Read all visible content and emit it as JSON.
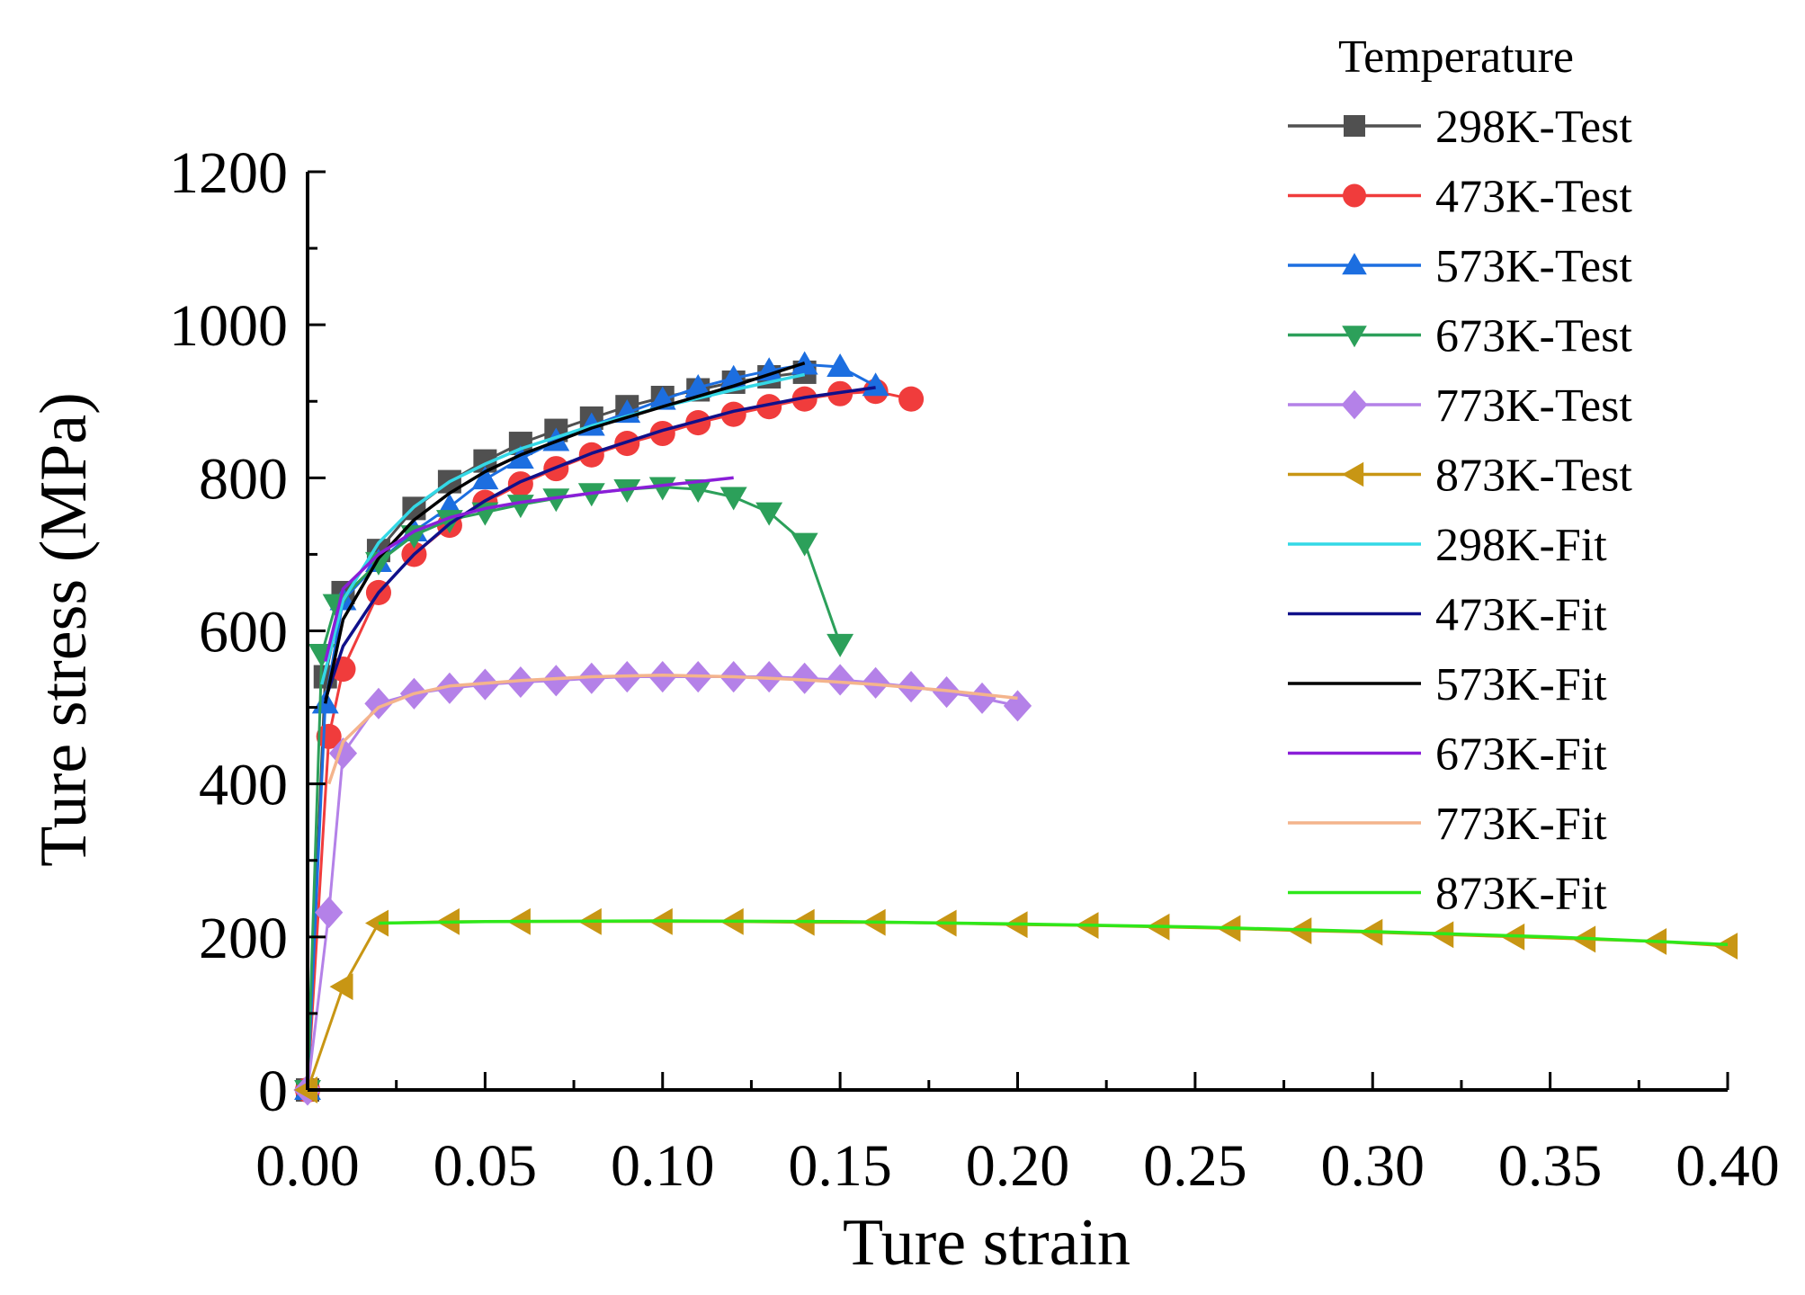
{
  "chart_data": {
    "type": "line",
    "title": "",
    "xlabel": "Ture strain",
    "ylabel": "Ture stress (MPa)",
    "xlim": [
      0,
      0.4
    ],
    "ylim": [
      0,
      1200
    ],
    "xticks": [
      "0.00",
      "0.05",
      "0.10",
      "0.15",
      "0.20",
      "0.25",
      "0.30",
      "0.35",
      "0.40"
    ],
    "yticks": [
      "0",
      "200",
      "400",
      "600",
      "800",
      "1000",
      "1200"
    ],
    "legend_title": "Temperature",
    "legend_position": "top-right",
    "grid": false,
    "series": [
      {
        "name": "298K-Test",
        "color": "#505050",
        "marker": "square",
        "kind": "test",
        "x": [
          0,
          0.005,
          0.01,
          0.02,
          0.03,
          0.04,
          0.05,
          0.06,
          0.07,
          0.08,
          0.09,
          0.1,
          0.11,
          0.12,
          0.13,
          0.14
        ],
        "y": [
          0,
          540,
          650,
          705,
          760,
          795,
          822,
          845,
          862,
          878,
          893,
          905,
          915,
          925,
          932,
          938
        ]
      },
      {
        "name": "473K-Test",
        "color": "#f03c3c",
        "marker": "circle",
        "kind": "test",
        "x": [
          0,
          0.006,
          0.01,
          0.02,
          0.03,
          0.04,
          0.05,
          0.06,
          0.07,
          0.08,
          0.09,
          0.1,
          0.11,
          0.12,
          0.13,
          0.14,
          0.15,
          0.16,
          0.17
        ],
        "y": [
          0,
          462,
          550,
          650,
          700,
          738,
          768,
          792,
          812,
          830,
          845,
          858,
          872,
          883,
          893,
          903,
          910,
          913,
          903
        ]
      },
      {
        "name": "573K-Test",
        "color": "#1c6ee0",
        "marker": "triangle-up",
        "kind": "test",
        "x": [
          0,
          0.005,
          0.01,
          0.02,
          0.03,
          0.04,
          0.05,
          0.06,
          0.07,
          0.08,
          0.09,
          0.1,
          0.11,
          0.12,
          0.13,
          0.14,
          0.15,
          0.16
        ],
        "y": [
          0,
          505,
          640,
          690,
          730,
          762,
          798,
          825,
          848,
          868,
          885,
          902,
          918,
          930,
          940,
          948,
          945,
          920
        ]
      },
      {
        "name": "673K-Test",
        "color": "#2ca05a",
        "marker": "triangle-down",
        "kind": "test",
        "x": [
          0,
          0.004,
          0.008,
          0.02,
          0.03,
          0.04,
          0.05,
          0.06,
          0.07,
          0.08,
          0.09,
          0.1,
          0.11,
          0.12,
          0.13,
          0.14,
          0.15
        ],
        "y": [
          0,
          570,
          635,
          690,
          725,
          745,
          755,
          765,
          773,
          780,
          785,
          788,
          785,
          775,
          755,
          715,
          583
        ]
      },
      {
        "name": "773K-Test",
        "color": "#b481e8",
        "marker": "diamond",
        "kind": "test",
        "x": [
          0,
          0.006,
          0.01,
          0.02,
          0.03,
          0.04,
          0.05,
          0.06,
          0.07,
          0.08,
          0.09,
          0.1,
          0.11,
          0.12,
          0.13,
          0.14,
          0.15,
          0.16,
          0.17,
          0.18,
          0.19,
          0.2
        ],
        "y": [
          0,
          232,
          440,
          505,
          518,
          525,
          530,
          533,
          535,
          538,
          540,
          540,
          540,
          540,
          540,
          538,
          536,
          532,
          527,
          520,
          512,
          502
        ]
      },
      {
        "name": "873K-Test",
        "color": "#c89614",
        "marker": "triangle-left",
        "kind": "test",
        "x": [
          0,
          0.01,
          0.02,
          0.04,
          0.06,
          0.08,
          0.1,
          0.12,
          0.14,
          0.16,
          0.18,
          0.2,
          0.22,
          0.24,
          0.26,
          0.28,
          0.3,
          0.32,
          0.34,
          0.36,
          0.38,
          0.4
        ],
        "y": [
          0,
          135,
          218,
          220,
          220,
          220,
          220,
          220,
          219,
          219,
          218,
          216,
          215,
          213,
          211,
          208,
          206,
          203,
          200,
          197,
          194,
          188
        ]
      },
      {
        "name": "298K-Fit",
        "color": "#34d8e6",
        "marker": "none",
        "kind": "fit",
        "x": [
          0.004,
          0.01,
          0.02,
          0.03,
          0.04,
          0.05,
          0.06,
          0.08,
          0.1,
          0.12,
          0.14
        ],
        "y": [
          530,
          640,
          715,
          762,
          795,
          818,
          838,
          868,
          893,
          915,
          935
        ]
      },
      {
        "name": "473K-Fit",
        "color": "#10108a",
        "marker": "none",
        "kind": "fit",
        "x": [
          0.005,
          0.01,
          0.02,
          0.03,
          0.04,
          0.05,
          0.06,
          0.08,
          0.1,
          0.12,
          0.14,
          0.16
        ],
        "y": [
          510,
          580,
          650,
          700,
          740,
          770,
          795,
          832,
          862,
          887,
          905,
          918
        ]
      },
      {
        "name": "573K-Fit",
        "color": "#000000",
        "marker": "none",
        "kind": "fit",
        "x": [
          0.005,
          0.01,
          0.02,
          0.03,
          0.04,
          0.05,
          0.06,
          0.08,
          0.1,
          0.12,
          0.14
        ],
        "y": [
          505,
          615,
          695,
          745,
          780,
          808,
          830,
          865,
          893,
          920,
          950
        ]
      },
      {
        "name": "673K-Fit",
        "color": "#8a1ed8",
        "marker": "none",
        "kind": "fit",
        "x": [
          0.005,
          0.01,
          0.02,
          0.03,
          0.04,
          0.05,
          0.06,
          0.08,
          0.1,
          0.12
        ],
        "y": [
          560,
          655,
          700,
          730,
          748,
          760,
          768,
          780,
          790,
          800
        ]
      },
      {
        "name": "773K-Fit",
        "color": "#f4b48c",
        "marker": "none",
        "kind": "fit",
        "x": [
          0.006,
          0.01,
          0.02,
          0.03,
          0.04,
          0.06,
          0.08,
          0.1,
          0.12,
          0.14,
          0.16,
          0.18,
          0.2
        ],
        "y": [
          400,
          455,
          500,
          518,
          528,
          535,
          540,
          542,
          540,
          536,
          530,
          522,
          512
        ]
      },
      {
        "name": "873K-Fit",
        "color": "#2ee81a",
        "marker": "none",
        "kind": "fit",
        "x": [
          0.02,
          0.05,
          0.1,
          0.15,
          0.2,
          0.25,
          0.3,
          0.35,
          0.4
        ],
        "y": [
          218,
          220,
          221,
          220,
          217,
          213,
          207,
          200,
          190
        ]
      }
    ]
  }
}
